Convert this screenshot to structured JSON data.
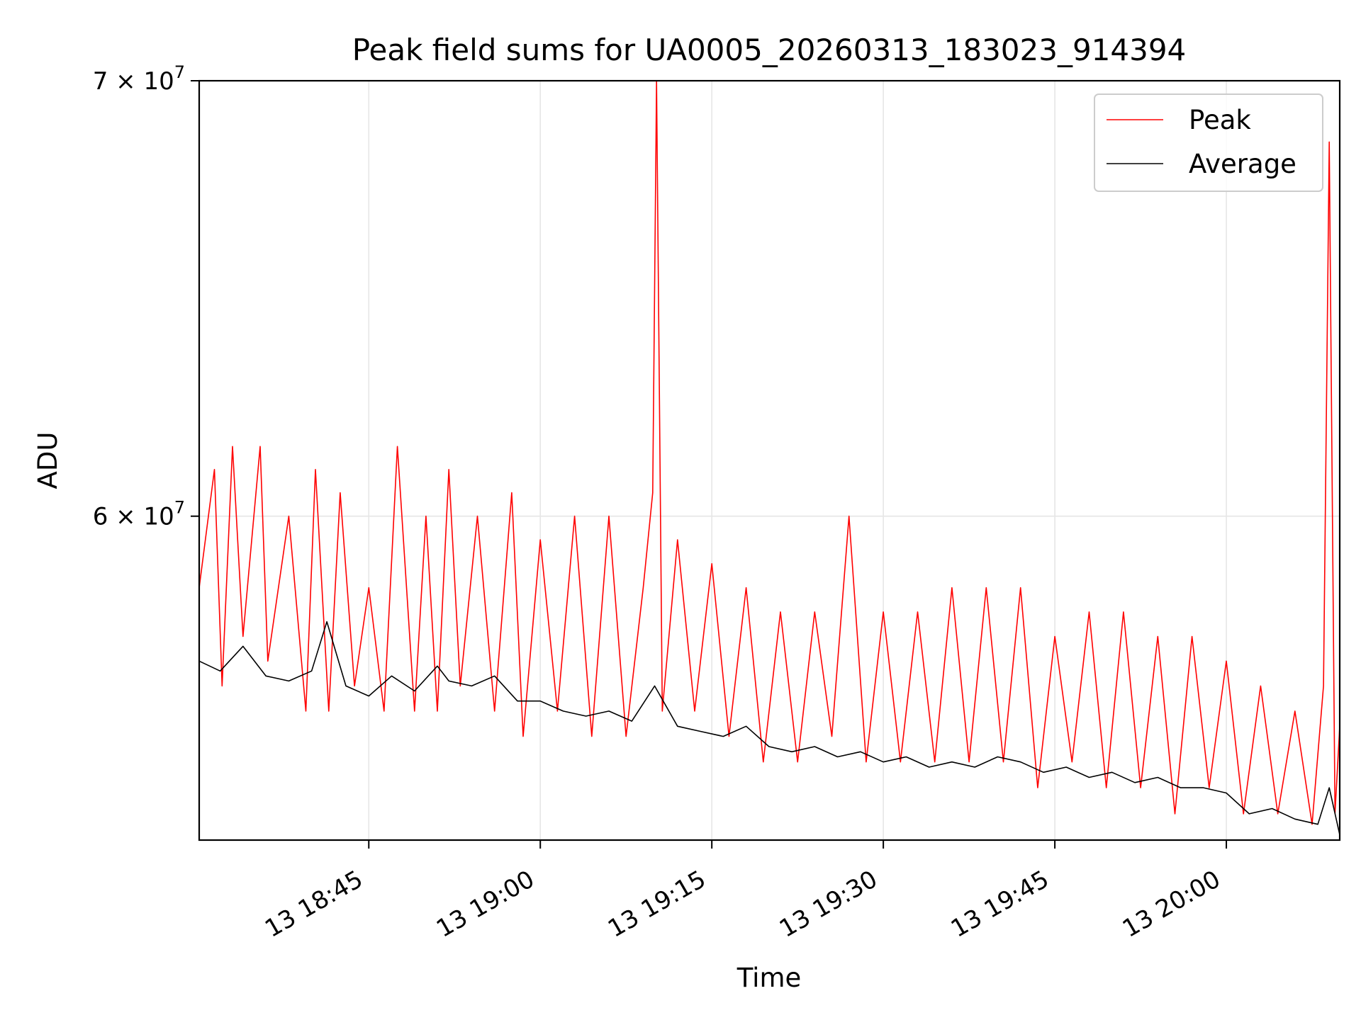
{
  "chart_data": {
    "type": "line",
    "title": "Peak field sums for UA0005_20260313_183023_914394",
    "xlabel": "Time",
    "ylabel": "ADU",
    "yscale": "log",
    "grid": true,
    "legend_position": "top-right",
    "xlim": [
      "2026-03-13 18:30:10",
      "2026-03-13 20:09:55"
    ],
    "ylim": [
      53500000,
      70000000
    ],
    "x_ticks": [
      {
        "value": "2026-03-13 18:45:00",
        "label": "13 18:45"
      },
      {
        "value": "2026-03-13 19:00:00",
        "label": "13 19:00"
      },
      {
        "value": "2026-03-13 19:15:00",
        "label": "13 19:15"
      },
      {
        "value": "2026-03-13 19:30:00",
        "label": "13 19:30"
      },
      {
        "value": "2026-03-13 19:45:00",
        "label": "13 19:45"
      },
      {
        "value": "2026-03-13 20:00:00",
        "label": "13 20:00"
      }
    ],
    "y_ticks": [
      {
        "value": 60000000,
        "label_mantissa": "6",
        "label_exponent": "7"
      },
      {
        "value": 70000000,
        "label_mantissa": "7",
        "label_exponent": "7"
      }
    ],
    "series": [
      {
        "name": "Peak",
        "color": "#ff0000",
        "x": [
          "2026-03-13 18:30:10",
          "2026-03-13 18:31:30",
          "2026-03-13 18:32:10",
          "2026-03-13 18:33:05",
          "2026-03-13 18:34:00",
          "2026-03-13 18:35:30",
          "2026-03-13 18:36:10",
          "2026-03-13 18:38:00",
          "2026-03-13 18:39:30",
          "2026-03-13 18:40:20",
          "2026-03-13 18:41:30",
          "2026-03-13 18:42:30",
          "2026-03-13 18:43:45",
          "2026-03-13 18:45:00",
          "2026-03-13 18:46:20",
          "2026-03-13 18:47:30",
          "2026-03-13 18:49:00",
          "2026-03-13 18:50:00",
          "2026-03-13 18:51:00",
          "2026-03-13 18:52:00",
          "2026-03-13 18:53:00",
          "2026-03-13 18:54:30",
          "2026-03-13 18:56:00",
          "2026-03-13 18:57:30",
          "2026-03-13 18:58:30",
          "2026-03-13 19:00:00",
          "2026-03-13 19:01:30",
          "2026-03-13 19:03:00",
          "2026-03-13 19:04:30",
          "2026-03-13 19:06:00",
          "2026-03-13 19:07:30",
          "2026-03-13 19:09:00",
          "2026-03-13 19:09:50",
          "2026-03-13 19:10:10",
          "2026-03-13 19:10:40",
          "2026-03-13 19:12:00",
          "2026-03-13 19:13:30",
          "2026-03-13 19:15:00",
          "2026-03-13 19:16:30",
          "2026-03-13 19:18:00",
          "2026-03-13 19:19:30",
          "2026-03-13 19:21:00",
          "2026-03-13 19:22:30",
          "2026-03-13 19:24:00",
          "2026-03-13 19:25:30",
          "2026-03-13 19:27:00",
          "2026-03-13 19:28:30",
          "2026-03-13 19:30:00",
          "2026-03-13 19:31:30",
          "2026-03-13 19:33:00",
          "2026-03-13 19:34:30",
          "2026-03-13 19:36:00",
          "2026-03-13 19:37:30",
          "2026-03-13 19:39:00",
          "2026-03-13 19:40:30",
          "2026-03-13 19:42:00",
          "2026-03-13 19:43:30",
          "2026-03-13 19:45:00",
          "2026-03-13 19:46:30",
          "2026-03-13 19:48:00",
          "2026-03-13 19:49:30",
          "2026-03-13 19:51:00",
          "2026-03-13 19:52:30",
          "2026-03-13 19:54:00",
          "2026-03-13 19:55:30",
          "2026-03-13 19:57:00",
          "2026-03-13 19:58:30",
          "2026-03-13 20:00:00",
          "2026-03-13 20:01:30",
          "2026-03-13 20:03:00",
          "2026-03-13 20:04:30",
          "2026-03-13 20:06:00",
          "2026-03-13 20:07:30",
          "2026-03-13 20:08:30",
          "2026-03-13 20:09:00",
          "2026-03-13 20:09:30",
          "2026-03-13 20:09:55"
        ],
        "y": [
          58500000,
          61000000,
          56500000,
          61500000,
          57500000,
          61500000,
          57000000,
          60000000,
          56000000,
          61000000,
          56000000,
          60500000,
          56500000,
          58500000,
          56000000,
          61500000,
          56000000,
          60000000,
          56000000,
          61000000,
          56500000,
          60000000,
          56000000,
          60500000,
          55500000,
          59500000,
          56000000,
          60000000,
          55500000,
          60000000,
          55500000,
          58500000,
          60500000,
          70000000,
          56000000,
          59500000,
          56000000,
          59000000,
          55500000,
          58500000,
          55000000,
          58000000,
          55000000,
          58000000,
          55500000,
          60000000,
          55000000,
          58000000,
          55000000,
          58000000,
          55000000,
          58500000,
          55000000,
          58500000,
          55000000,
          58500000,
          54500000,
          57500000,
          55000000,
          58000000,
          54500000,
          58000000,
          54500000,
          57500000,
          54000000,
          57500000,
          54500000,
          57000000,
          54000000,
          56500000,
          54000000,
          56000000,
          53800000,
          56500000,
          68500000,
          54000000,
          55700000
        ]
      },
      {
        "name": "Average",
        "color": "#000000",
        "x": [
          "2026-03-13 18:30:10",
          "2026-03-13 18:32:00",
          "2026-03-13 18:34:00",
          "2026-03-13 18:36:00",
          "2026-03-13 18:38:00",
          "2026-03-13 18:40:00",
          "2026-03-13 18:41:20",
          "2026-03-13 18:43:00",
          "2026-03-13 18:45:00",
          "2026-03-13 18:47:00",
          "2026-03-13 18:49:00",
          "2026-03-13 18:51:00",
          "2026-03-13 18:52:00",
          "2026-03-13 18:54:00",
          "2026-03-13 18:56:00",
          "2026-03-13 18:58:00",
          "2026-03-13 19:00:00",
          "2026-03-13 19:02:00",
          "2026-03-13 19:04:00",
          "2026-03-13 19:06:00",
          "2026-03-13 19:08:00",
          "2026-03-13 19:10:00",
          "2026-03-13 19:12:00",
          "2026-03-13 19:14:00",
          "2026-03-13 19:16:00",
          "2026-03-13 19:18:00",
          "2026-03-13 19:20:00",
          "2026-03-13 19:22:00",
          "2026-03-13 19:24:00",
          "2026-03-13 19:26:00",
          "2026-03-13 19:28:00",
          "2026-03-13 19:30:00",
          "2026-03-13 19:32:00",
          "2026-03-13 19:34:00",
          "2026-03-13 19:36:00",
          "2026-03-13 19:38:00",
          "2026-03-13 19:40:00",
          "2026-03-13 19:42:00",
          "2026-03-13 19:44:00",
          "2026-03-13 19:46:00",
          "2026-03-13 19:48:00",
          "2026-03-13 19:50:00",
          "2026-03-13 19:52:00",
          "2026-03-13 19:54:00",
          "2026-03-13 19:56:00",
          "2026-03-13 19:58:00",
          "2026-03-13 20:00:00",
          "2026-03-13 20:02:00",
          "2026-03-13 20:04:00",
          "2026-03-13 20:06:00",
          "2026-03-13 20:08:00",
          "2026-03-13 20:09:00",
          "2026-03-13 20:09:55"
        ],
        "y": [
          57000000,
          56800000,
          57300000,
          56700000,
          56600000,
          56800000,
          57800000,
          56500000,
          56300000,
          56700000,
          56400000,
          56900000,
          56600000,
          56500000,
          56700000,
          56200000,
          56200000,
          56000000,
          55900000,
          56000000,
          55800000,
          56500000,
          55700000,
          55600000,
          55500000,
          55700000,
          55300000,
          55200000,
          55300000,
          55100000,
          55200000,
          55000000,
          55100000,
          54900000,
          55000000,
          54900000,
          55100000,
          55000000,
          54800000,
          54900000,
          54700000,
          54800000,
          54600000,
          54700000,
          54500000,
          54500000,
          54400000,
          54000000,
          54100000,
          53900000,
          53800000,
          54500000,
          53600000
        ]
      }
    ]
  }
}
